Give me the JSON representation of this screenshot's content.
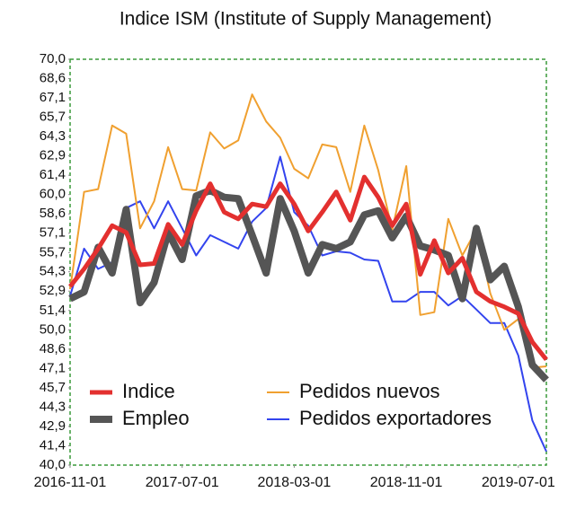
{
  "chart_data": {
    "type": "line",
    "title": "Indice ISM (Institute of Supply Management)",
    "x": [
      "2016-11-01",
      "2016-12-01",
      "2017-01-01",
      "2017-02-01",
      "2017-03-01",
      "2017-04-01",
      "2017-05-01",
      "2017-06-01",
      "2017-07-01",
      "2017-08-01",
      "2017-09-01",
      "2017-10-01",
      "2017-11-01",
      "2017-12-01",
      "2018-01-01",
      "2018-02-01",
      "2018-03-01",
      "2018-04-01",
      "2018-05-01",
      "2018-06-01",
      "2018-07-01",
      "2018-08-01",
      "2018-09-01",
      "2018-10-01",
      "2018-11-01",
      "2018-12-01",
      "2019-01-01",
      "2019-02-01",
      "2019-03-01",
      "2019-04-01",
      "2019-05-01",
      "2019-06-01",
      "2019-07-01",
      "2019-08-01",
      "2019-09-01"
    ],
    "xticks": [
      "2016-11-01",
      "2017-07-01",
      "2018-03-01",
      "2018-11-01",
      "2019-07-01"
    ],
    "series": [
      {
        "name": "Indice",
        "color": "#e3302f",
        "values": [
          53.2,
          54.5,
          56.0,
          57.7,
          57.2,
          54.8,
          54.9,
          57.8,
          56.3,
          58.8,
          60.8,
          58.7,
          58.2,
          59.3,
          59.1,
          60.8,
          59.3,
          57.3,
          58.7,
          60.2,
          58.1,
          61.3,
          59.8,
          57.7,
          59.3,
          54.1,
          56.6,
          54.2,
          55.3,
          52.8,
          52.1,
          51.7,
          51.2,
          49.1,
          47.8
        ]
      },
      {
        "name": "Pedidos nuevos",
        "color": "#f0a030",
        "values": [
          53.0,
          60.2,
          60.4,
          65.1,
          64.5,
          57.5,
          59.5,
          63.5,
          60.4,
          60.3,
          64.6,
          63.4,
          64.0,
          67.4,
          65.4,
          64.2,
          61.9,
          61.2,
          63.7,
          63.5,
          60.2,
          65.1,
          61.8,
          57.4,
          62.1,
          51.1,
          51.3,
          58.2,
          55.5,
          57.4,
          52.7,
          50.0,
          50.8,
          47.2,
          47.3
        ]
      },
      {
        "name": "Empleo",
        "color": "#555555",
        "values": [
          52.3,
          52.8,
          56.1,
          54.2,
          58.9,
          52.0,
          53.5,
          57.2,
          55.2,
          59.9,
          60.3,
          59.8,
          59.7,
          57.0,
          54.2,
          59.7,
          57.3,
          54.2,
          56.3,
          56.0,
          56.5,
          58.5,
          58.8,
          56.8,
          58.4,
          56.2,
          55.9,
          55.5,
          52.3,
          57.5,
          53.7,
          54.7,
          51.7,
          47.4,
          46.3
        ]
      },
      {
        "name": "Pedidos exportadores",
        "color": "#3344ee",
        "values": [
          52.5,
          56.0,
          54.5,
          55.0,
          59.0,
          59.5,
          57.5,
          59.5,
          57.5,
          55.5,
          57.0,
          56.5,
          56.0,
          58.0,
          59.0,
          62.8,
          58.7,
          57.7,
          55.5,
          55.8,
          55.7,
          55.2,
          55.1,
          52.1,
          52.1,
          52.8,
          52.8,
          51.8,
          52.5,
          51.5,
          50.5,
          50.5,
          48.1,
          43.3,
          41.0
        ]
      }
    ],
    "ylim": [
      40,
      70
    ],
    "yticks": [
      {
        "value": 40,
        "label": "40,0"
      },
      {
        "value": 41.43,
        "label": "41,4"
      },
      {
        "value": 42.86,
        "label": "42,9"
      },
      {
        "value": 44.29,
        "label": "44,3"
      },
      {
        "value": 45.71,
        "label": "45,7"
      },
      {
        "value": 47.14,
        "label": "47,1"
      },
      {
        "value": 48.57,
        "label": "48,6"
      },
      {
        "value": 50,
        "label": "50,0"
      },
      {
        "value": 51.43,
        "label": "51,4"
      },
      {
        "value": 52.86,
        "label": "52,9"
      },
      {
        "value": 54.29,
        "label": "54,3"
      },
      {
        "value": 55.71,
        "label": "55,7"
      },
      {
        "value": 57.14,
        "label": "57,1"
      },
      {
        "value": 58.57,
        "label": "58,6"
      },
      {
        "value": 60,
        "label": "60,0"
      },
      {
        "value": 61.43,
        "label": "61,4"
      },
      {
        "value": 62.86,
        "label": "62,9"
      },
      {
        "value": 64.29,
        "label": "64,3"
      },
      {
        "value": 65.71,
        "label": "65,7"
      },
      {
        "value": 67.14,
        "label": "67,1"
      },
      {
        "value": 68.57,
        "label": "68,6"
      },
      {
        "value": 70,
        "label": "70,0"
      }
    ],
    "grid": false,
    "legend": "lower left"
  }
}
